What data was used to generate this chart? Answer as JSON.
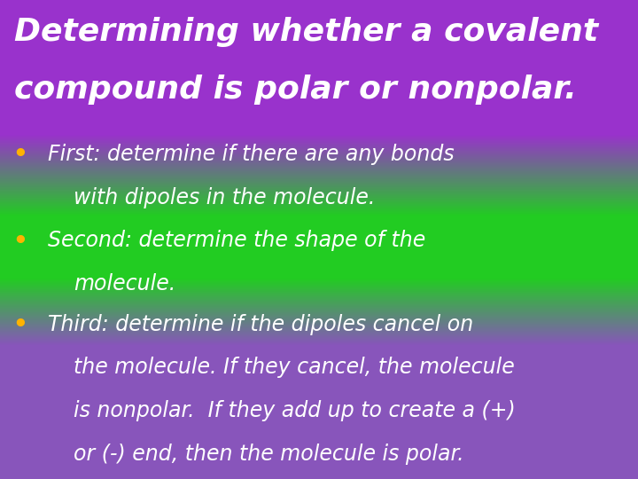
{
  "title_line1": "Determining whether a covalent",
  "title_line2": "compound is polar or nonpolar.",
  "bullet1_line1": "First: determine if there are any bonds",
  "bullet1_line2": "with dipoles in the molecule.",
  "bullet2_line1": "Second: determine the shape of the",
  "bullet2_line2": "molecule.",
  "bullet3_line1": "Third: determine if the dipoles cancel on",
  "bullet3_line2": "the molecule. If they cancel, the molecule",
  "bullet3_line3": "is nonpolar.  If they add up to create a (+)",
  "bullet3_line4": "or (-) end, then the molecule is polar.",
  "purple_top": "#9932CC",
  "green_mid": "#22CC22",
  "purple_bot": "#8855BB",
  "title_color": "#FFFFFF",
  "bullet_color": "#FFFFFF",
  "bullet_dot_color": "#FFB300",
  "title_fontsize": 26,
  "bullet_fontsize": 17,
  "fig_width": 7.2,
  "fig_height": 5.4,
  "dpi": 100
}
